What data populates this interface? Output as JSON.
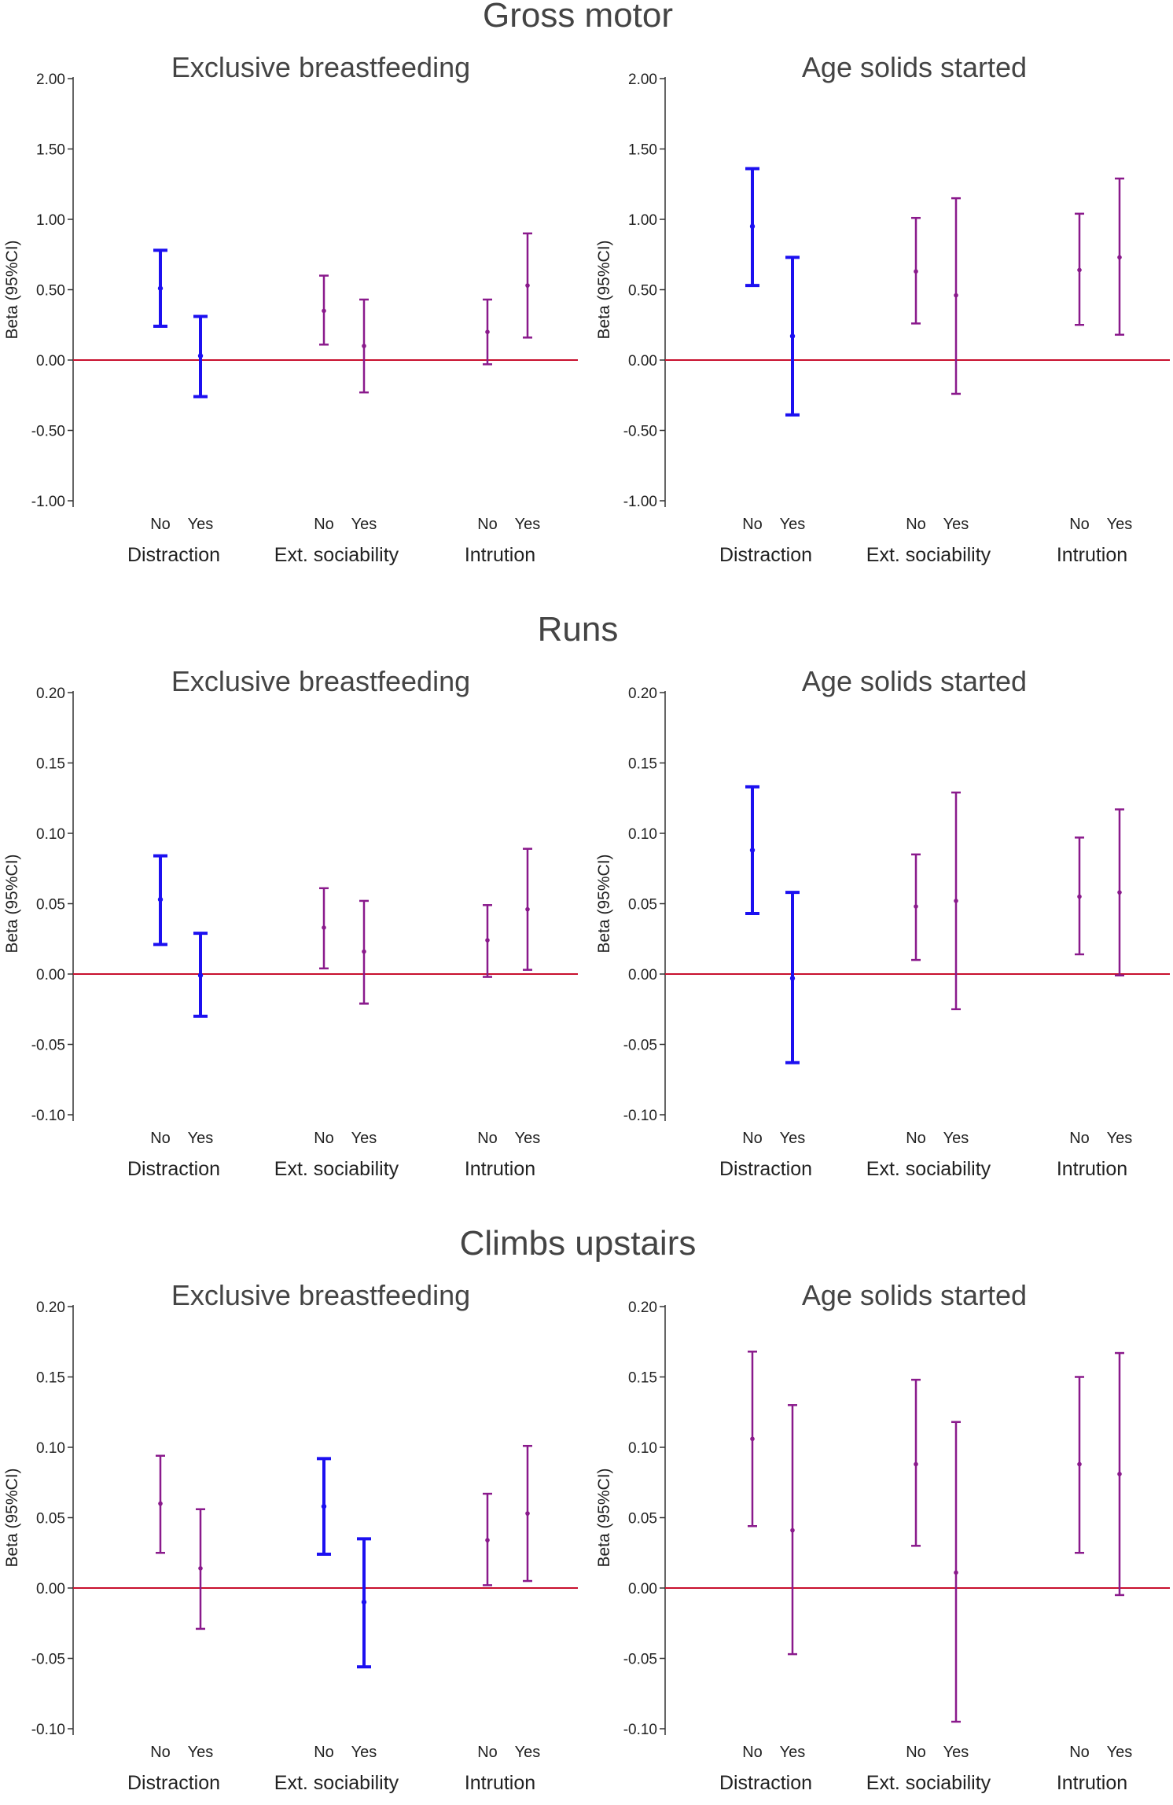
{
  "colors": {
    "blue": "#1c10f0",
    "purple": "#8a1a8c",
    "zero_line": "#c8102e",
    "axis": "#333333",
    "text": "#444444"
  },
  "sections": [
    {
      "title": "Gross motor",
      "panels": [
        {
          "title": "Exclusive breastfeeding",
          "ylabel": "Beta (95%CI)",
          "ylim": [
            -1.0,
            2.0
          ],
          "ticks": [
            2.0,
            1.5,
            1.0,
            0.5,
            0.0,
            -0.5,
            -1.0
          ],
          "tick_labels": [
            "2.00",
            "1.50",
            "1.00",
            "0.50",
            "0.00",
            "-0.50",
            "-1.00"
          ],
          "categories": [
            "No",
            "Yes",
            "No",
            "Yes",
            "No",
            "Yes"
          ],
          "groups": [
            "Distraction",
            "Ext. sociability",
            "Intrution"
          ],
          "points": [
            {
              "est": 0.51,
              "lo": 0.24,
              "hi": 0.78,
              "color": "blue"
            },
            {
              "est": 0.03,
              "lo": -0.26,
              "hi": 0.31,
              "color": "blue"
            },
            {
              "est": 0.35,
              "lo": 0.11,
              "hi": 0.6,
              "color": "purple"
            },
            {
              "est": 0.1,
              "lo": -0.23,
              "hi": 0.43,
              "color": "purple"
            },
            {
              "est": 0.2,
              "lo": -0.03,
              "hi": 0.43,
              "color": "purple"
            },
            {
              "est": 0.53,
              "lo": 0.16,
              "hi": 0.9,
              "color": "purple"
            }
          ]
        },
        {
          "title": "Age solids started",
          "ylabel": "Beta (95%CI)",
          "ylim": [
            -1.0,
            2.0
          ],
          "ticks": [
            2.0,
            1.5,
            1.0,
            0.5,
            0.0,
            -0.5,
            -1.0
          ],
          "tick_labels": [
            "2.00",
            "1.50",
            "1.00",
            "0.50",
            "0.00",
            "-0.50",
            "-1.00"
          ],
          "categories": [
            "No",
            "Yes",
            "No",
            "Yes",
            "No",
            "Yes"
          ],
          "groups": [
            "Distraction",
            "Ext. sociability",
            "Intrution"
          ],
          "points": [
            {
              "est": 0.95,
              "lo": 0.53,
              "hi": 1.36,
              "color": "blue"
            },
            {
              "est": 0.17,
              "lo": -0.39,
              "hi": 0.73,
              "color": "blue"
            },
            {
              "est": 0.63,
              "lo": 0.26,
              "hi": 1.01,
              "color": "purple"
            },
            {
              "est": 0.46,
              "lo": -0.24,
              "hi": 1.15,
              "color": "purple"
            },
            {
              "est": 0.64,
              "lo": 0.25,
              "hi": 1.04,
              "color": "purple"
            },
            {
              "est": 0.73,
              "lo": 0.18,
              "hi": 1.29,
              "color": "purple"
            }
          ]
        }
      ]
    },
    {
      "title": "Runs",
      "panels": [
        {
          "title": "Exclusive breastfeeding",
          "ylabel": "Beta (95%CI)",
          "ylim": [
            -0.1,
            0.2
          ],
          "ticks": [
            0.2,
            0.15,
            0.1,
            0.05,
            0.0,
            -0.05,
            -0.1
          ],
          "tick_labels": [
            "0.20",
            "0.15",
            "0.10",
            "0.05",
            "0.00",
            "-0.05",
            "-0.10"
          ],
          "categories": [
            "No",
            "Yes",
            "No",
            "Yes",
            "No",
            "Yes"
          ],
          "groups": [
            "Distraction",
            "Ext. sociability",
            "Intrution"
          ],
          "points": [
            {
              "est": 0.053,
              "lo": 0.021,
              "hi": 0.084,
              "color": "blue"
            },
            {
              "est": -0.001,
              "lo": -0.03,
              "hi": 0.029,
              "color": "blue"
            },
            {
              "est": 0.033,
              "lo": 0.004,
              "hi": 0.061,
              "color": "purple"
            },
            {
              "est": 0.016,
              "lo": -0.021,
              "hi": 0.052,
              "color": "purple"
            },
            {
              "est": 0.024,
              "lo": -0.002,
              "hi": 0.049,
              "color": "purple"
            },
            {
              "est": 0.046,
              "lo": 0.003,
              "hi": 0.089,
              "color": "purple"
            }
          ]
        },
        {
          "title": "Age solids started",
          "ylabel": "Beta (95%CI)",
          "ylim": [
            -0.1,
            0.2
          ],
          "ticks": [
            0.2,
            0.15,
            0.1,
            0.05,
            0.0,
            -0.05,
            -0.1
          ],
          "tick_labels": [
            "0.20",
            "0.15",
            "0.10",
            "0.05",
            "0.00",
            "-0.05",
            "-0.10"
          ],
          "categories": [
            "No",
            "Yes",
            "No",
            "Yes",
            "No",
            "Yes"
          ],
          "groups": [
            "Distraction",
            "Ext. sociability",
            "Intrution"
          ],
          "points": [
            {
              "est": 0.088,
              "lo": 0.043,
              "hi": 0.133,
              "color": "blue"
            },
            {
              "est": -0.003,
              "lo": -0.063,
              "hi": 0.058,
              "color": "blue"
            },
            {
              "est": 0.048,
              "lo": 0.01,
              "hi": 0.085,
              "color": "purple"
            },
            {
              "est": 0.052,
              "lo": -0.025,
              "hi": 0.129,
              "color": "purple"
            },
            {
              "est": 0.055,
              "lo": 0.014,
              "hi": 0.097,
              "color": "purple"
            },
            {
              "est": 0.058,
              "lo": -0.001,
              "hi": 0.117,
              "color": "purple"
            }
          ]
        }
      ]
    },
    {
      "title": "Climbs upstairs",
      "panels": [
        {
          "title": "Exclusive breastfeeding",
          "ylabel": "Beta (95%CI)",
          "ylim": [
            -0.1,
            0.2
          ],
          "ticks": [
            0.2,
            0.15,
            0.1,
            0.05,
            0.0,
            -0.05,
            -0.1
          ],
          "tick_labels": [
            "0.20",
            "0.15",
            "0.10",
            "0.05",
            "0.00",
            "-0.05",
            "-0.10"
          ],
          "categories": [
            "No",
            "Yes",
            "No",
            "Yes",
            "No",
            "Yes"
          ],
          "groups": [
            "Distraction",
            "Ext. sociability",
            "Intrution"
          ],
          "points": [
            {
              "est": 0.06,
              "lo": 0.025,
              "hi": 0.094,
              "color": "purple"
            },
            {
              "est": 0.014,
              "lo": -0.029,
              "hi": 0.056,
              "color": "purple"
            },
            {
              "est": 0.058,
              "lo": 0.024,
              "hi": 0.092,
              "color": "blue"
            },
            {
              "est": -0.01,
              "lo": -0.056,
              "hi": 0.035,
              "color": "blue"
            },
            {
              "est": 0.034,
              "lo": 0.002,
              "hi": 0.067,
              "color": "purple"
            },
            {
              "est": 0.053,
              "lo": 0.005,
              "hi": 0.101,
              "color": "purple"
            }
          ]
        },
        {
          "title": "Age solids started",
          "ylabel": "Beta (95%CI)",
          "ylim": [
            -0.1,
            0.2
          ],
          "ticks": [
            0.2,
            0.15,
            0.1,
            0.05,
            0.0,
            -0.05,
            -0.1
          ],
          "tick_labels": [
            "0.20",
            "0.15",
            "0.10",
            "0.05",
            "0.00",
            "-0.05",
            "-0.10"
          ],
          "categories": [
            "No",
            "Yes",
            "No",
            "Yes",
            "No",
            "Yes"
          ],
          "groups": [
            "Distraction",
            "Ext. sociability",
            "Intrution"
          ],
          "points": [
            {
              "est": 0.106,
              "lo": 0.044,
              "hi": 0.168,
              "color": "purple"
            },
            {
              "est": 0.041,
              "lo": -0.047,
              "hi": 0.13,
              "color": "purple"
            },
            {
              "est": 0.088,
              "lo": 0.03,
              "hi": 0.148,
              "color": "purple"
            },
            {
              "est": 0.011,
              "lo": -0.095,
              "hi": 0.118,
              "color": "purple"
            },
            {
              "est": 0.088,
              "lo": 0.025,
              "hi": 0.15,
              "color": "purple"
            },
            {
              "est": 0.081,
              "lo": -0.005,
              "hi": 0.167,
              "color": "purple"
            }
          ]
        }
      ]
    }
  ],
  "chart_data": [
    {
      "type": "scatter",
      "subtype": "forest-plot",
      "section": "Gross motor",
      "title": "Exclusive breastfeeding",
      "ylabel": "Beta (95%CI)",
      "ylim": [
        -1.0,
        2.0
      ],
      "categories": [
        "Distraction No",
        "Distraction Yes",
        "Ext. sociability No",
        "Ext. sociability Yes",
        "Intrution No",
        "Intrution Yes"
      ],
      "series": [
        {
          "name": "estimate",
          "values": [
            0.51,
            0.03,
            0.35,
            0.1,
            0.2,
            0.53
          ]
        },
        {
          "name": "ci_lower",
          "values": [
            0.24,
            -0.26,
            0.11,
            -0.23,
            -0.03,
            0.16
          ]
        },
        {
          "name": "ci_upper",
          "values": [
            0.78,
            0.31,
            0.6,
            0.43,
            0.43,
            0.9
          ]
        }
      ],
      "reference_line": 0
    },
    {
      "type": "scatter",
      "subtype": "forest-plot",
      "section": "Gross motor",
      "title": "Age solids started",
      "ylabel": "Beta (95%CI)",
      "ylim": [
        -1.0,
        2.0
      ],
      "categories": [
        "Distraction No",
        "Distraction Yes",
        "Ext. sociability No",
        "Ext. sociability Yes",
        "Intrution No",
        "Intrution Yes"
      ],
      "series": [
        {
          "name": "estimate",
          "values": [
            0.95,
            0.17,
            0.63,
            0.46,
            0.64,
            0.73
          ]
        },
        {
          "name": "ci_lower",
          "values": [
            0.53,
            -0.39,
            0.26,
            -0.24,
            0.25,
            0.18
          ]
        },
        {
          "name": "ci_upper",
          "values": [
            1.36,
            0.73,
            1.01,
            1.15,
            1.04,
            1.29
          ]
        }
      ],
      "reference_line": 0
    },
    {
      "type": "scatter",
      "subtype": "forest-plot",
      "section": "Runs",
      "title": "Exclusive breastfeeding",
      "ylabel": "Beta (95%CI)",
      "ylim": [
        -0.1,
        0.2
      ],
      "categories": [
        "Distraction No",
        "Distraction Yes",
        "Ext. sociability No",
        "Ext. sociability Yes",
        "Intrution No",
        "Intrution Yes"
      ],
      "series": [
        {
          "name": "estimate",
          "values": [
            0.053,
            -0.001,
            0.033,
            0.016,
            0.024,
            0.046
          ]
        },
        {
          "name": "ci_lower",
          "values": [
            0.021,
            -0.03,
            0.004,
            -0.021,
            -0.002,
            0.003
          ]
        },
        {
          "name": "ci_upper",
          "values": [
            0.084,
            0.029,
            0.061,
            0.052,
            0.049,
            0.089
          ]
        }
      ],
      "reference_line": 0
    },
    {
      "type": "scatter",
      "subtype": "forest-plot",
      "section": "Runs",
      "title": "Age solids started",
      "ylabel": "Beta (95%CI)",
      "ylim": [
        -0.1,
        0.2
      ],
      "categories": [
        "Distraction No",
        "Distraction Yes",
        "Ext. sociability No",
        "Ext. sociability Yes",
        "Intrution No",
        "Intrution Yes"
      ],
      "series": [
        {
          "name": "estimate",
          "values": [
            0.088,
            -0.003,
            0.048,
            0.052,
            0.055,
            0.058
          ]
        },
        {
          "name": "ci_lower",
          "values": [
            0.043,
            -0.063,
            0.01,
            -0.025,
            0.014,
            -0.001
          ]
        },
        {
          "name": "ci_upper",
          "values": [
            0.133,
            0.058,
            0.085,
            0.129,
            0.097,
            0.117
          ]
        }
      ],
      "reference_line": 0
    },
    {
      "type": "scatter",
      "subtype": "forest-plot",
      "section": "Climbs upstairs",
      "title": "Exclusive breastfeeding",
      "ylabel": "Beta (95%CI)",
      "ylim": [
        -0.1,
        0.2
      ],
      "categories": [
        "Distraction No",
        "Distraction Yes",
        "Ext. sociability No",
        "Ext. sociability Yes",
        "Intrution No",
        "Intrution Yes"
      ],
      "series": [
        {
          "name": "estimate",
          "values": [
            0.06,
            0.014,
            0.058,
            -0.01,
            0.034,
            0.053
          ]
        },
        {
          "name": "ci_lower",
          "values": [
            0.025,
            -0.029,
            0.024,
            -0.056,
            0.002,
            0.005
          ]
        },
        {
          "name": "ci_upper",
          "values": [
            0.094,
            0.056,
            0.092,
            0.035,
            0.067,
            0.101
          ]
        }
      ],
      "reference_line": 0
    },
    {
      "type": "scatter",
      "subtype": "forest-plot",
      "section": "Climbs upstairs",
      "title": "Age solids started",
      "ylabel": "Beta (95%CI)",
      "ylim": [
        -0.1,
        0.2
      ],
      "categories": [
        "Distraction No",
        "Distraction Yes",
        "Ext. sociability No",
        "Ext. sociability Yes",
        "Intrution No",
        "Intrution Yes"
      ],
      "series": [
        {
          "name": "estimate",
          "values": [
            0.106,
            0.041,
            0.088,
            0.011,
            0.088,
            0.081
          ]
        },
        {
          "name": "ci_lower",
          "values": [
            0.044,
            -0.047,
            0.03,
            -0.095,
            0.025,
            -0.005
          ]
        },
        {
          "name": "ci_upper",
          "values": [
            0.168,
            0.13,
            0.148,
            0.118,
            0.15,
            0.167
          ]
        }
      ],
      "reference_line": 0
    }
  ]
}
